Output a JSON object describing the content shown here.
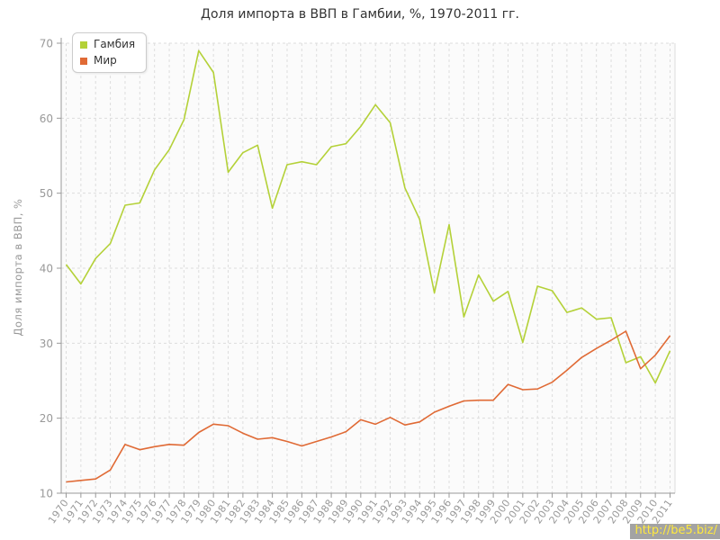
{
  "title": "Доля импорта в ВВП в Гамбии, %, 1970-2011 гг.",
  "watermark": "http://be5.biz/",
  "colors": {
    "gambia_line": "#b4d138",
    "world_line": "#e06a35",
    "grid": "#dddddd",
    "axis": "#999999",
    "tick_text": "#999999",
    "title_text": "#333333",
    "plot_bg": "#fbfbfb",
    "watermark_bg": "#a3a3a3",
    "watermark_text": "#ffe93e"
  },
  "chart_data": {
    "type": "line",
    "title": "Доля импорта в ВВП в Гамбии, %, 1970-2011 гг.",
    "xlabel": "",
    "ylabel": "Доля импорта в ВВП, %",
    "ylim": [
      10,
      70
    ],
    "yticks": [
      10,
      20,
      30,
      40,
      50,
      60,
      70
    ],
    "grid": true,
    "grid_style": "dashed",
    "legend_position": "top-left",
    "x": [
      1970,
      1971,
      1972,
      1973,
      1974,
      1975,
      1976,
      1977,
      1978,
      1979,
      1980,
      1981,
      1982,
      1983,
      1984,
      1985,
      1986,
      1987,
      1988,
      1989,
      1990,
      1991,
      1992,
      1993,
      1994,
      1995,
      1996,
      1997,
      1998,
      1999,
      2000,
      2001,
      2002,
      2003,
      2004,
      2005,
      2006,
      2007,
      2008,
      2009,
      2010,
      2011
    ],
    "series": [
      {
        "name": "Гамбия",
        "color": "#b4d138",
        "values": [
          40.5,
          37.9,
          41.3,
          43.3,
          48.4,
          48.7,
          53.1,
          55.8,
          59.8,
          69.0,
          66.1,
          52.8,
          55.4,
          56.4,
          48.0,
          53.8,
          54.2,
          53.8,
          56.2,
          56.6,
          58.9,
          61.8,
          59.4,
          50.7,
          46.5,
          36.7,
          45.8,
          33.5,
          39.1,
          35.6,
          36.9,
          30.1,
          37.6,
          37.0,
          34.1,
          34.7,
          33.2,
          33.4,
          27.4,
          28.2,
          24.7,
          29.0
        ]
      },
      {
        "name": "Мир",
        "color": "#e06a35",
        "values": [
          11.5,
          11.7,
          11.9,
          13.1,
          16.5,
          15.8,
          16.2,
          16.5,
          16.4,
          18.1,
          19.2,
          19.0,
          18.0,
          17.2,
          17.4,
          16.9,
          16.3,
          16.9,
          17.5,
          18.2,
          19.8,
          19.2,
          20.1,
          19.1,
          19.5,
          20.8,
          21.6,
          22.3,
          22.4,
          22.4,
          24.5,
          23.8,
          23.9,
          24.8,
          26.4,
          28.1,
          29.3,
          30.4,
          31.6,
          26.6,
          28.4,
          31.0
        ]
      }
    ]
  }
}
